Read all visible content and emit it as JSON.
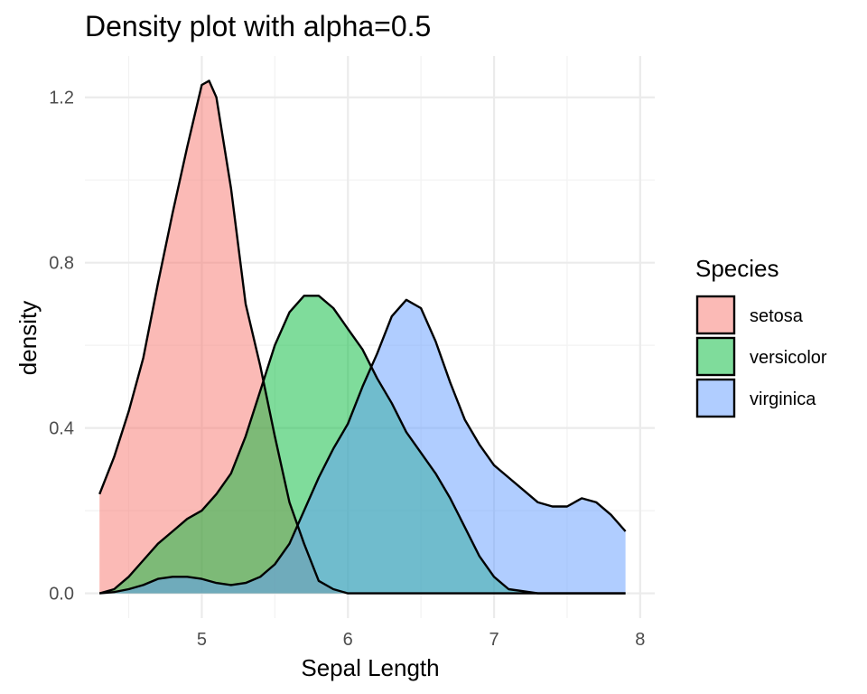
{
  "chart_data": {
    "type": "area",
    "title": "Density plot with alpha=0.5",
    "xlabel": "Sepal Length",
    "ylabel": "density",
    "xlim": [
      4.2,
      8.1
    ],
    "ylim": [
      -0.06,
      1.3
    ],
    "x_ticks": [
      5,
      6,
      7,
      8
    ],
    "x_minor_ticks": [
      4.5,
      5.5,
      6.5,
      7.5
    ],
    "y_ticks": [
      0.0,
      0.4,
      0.8,
      1.2
    ],
    "y_tick_labels": [
      "0.0",
      "0.4",
      "0.8",
      "1.2"
    ],
    "y_minor_ticks": [
      0.2,
      0.6,
      1.0
    ],
    "grid": true,
    "fill_alpha": 0.5,
    "legend": {
      "title": "Species",
      "position": "right"
    },
    "series": [
      {
        "name": "setosa",
        "color": "#F8766D",
        "points": [
          [
            4.3,
            0.24
          ],
          [
            4.4,
            0.33
          ],
          [
            4.5,
            0.44
          ],
          [
            4.6,
            0.57
          ],
          [
            4.7,
            0.75
          ],
          [
            4.8,
            0.92
          ],
          [
            4.9,
            1.08
          ],
          [
            5.0,
            1.23
          ],
          [
            5.05,
            1.24
          ],
          [
            5.1,
            1.2
          ],
          [
            5.2,
            0.98
          ],
          [
            5.3,
            0.7
          ],
          [
            5.4,
            0.55
          ],
          [
            5.5,
            0.38
          ],
          [
            5.6,
            0.22
          ],
          [
            5.7,
            0.12
          ],
          [
            5.8,
            0.03
          ],
          [
            5.9,
            0.01
          ],
          [
            6.0,
            0.0
          ],
          [
            6.2,
            0.0
          ],
          [
            7.9,
            0.0
          ]
        ]
      },
      {
        "name": "versicolor",
        "color": "#00BA38",
        "points": [
          [
            4.3,
            0.0
          ],
          [
            4.4,
            0.01
          ],
          [
            4.5,
            0.04
          ],
          [
            4.6,
            0.08
          ],
          [
            4.7,
            0.12
          ],
          [
            4.8,
            0.15
          ],
          [
            4.9,
            0.18
          ],
          [
            5.0,
            0.2
          ],
          [
            5.1,
            0.24
          ],
          [
            5.2,
            0.29
          ],
          [
            5.3,
            0.38
          ],
          [
            5.4,
            0.49
          ],
          [
            5.5,
            0.6
          ],
          [
            5.6,
            0.68
          ],
          [
            5.7,
            0.72
          ],
          [
            5.8,
            0.72
          ],
          [
            5.9,
            0.69
          ],
          [
            6.0,
            0.64
          ],
          [
            6.1,
            0.59
          ],
          [
            6.2,
            0.52
          ],
          [
            6.3,
            0.46
          ],
          [
            6.4,
            0.39
          ],
          [
            6.5,
            0.34
          ],
          [
            6.6,
            0.29
          ],
          [
            6.7,
            0.23
          ],
          [
            6.8,
            0.16
          ],
          [
            6.9,
            0.09
          ],
          [
            7.0,
            0.04
          ],
          [
            7.1,
            0.01
          ],
          [
            7.3,
            0.0
          ],
          [
            7.9,
            0.0
          ]
        ]
      },
      {
        "name": "virginica",
        "color": "#619CFF",
        "points": [
          [
            4.3,
            0.0
          ],
          [
            4.4,
            0.003
          ],
          [
            4.5,
            0.01
          ],
          [
            4.6,
            0.02
          ],
          [
            4.7,
            0.035
          ],
          [
            4.8,
            0.04
          ],
          [
            4.9,
            0.04
          ],
          [
            5.0,
            0.035
          ],
          [
            5.1,
            0.025
          ],
          [
            5.2,
            0.02
          ],
          [
            5.3,
            0.025
          ],
          [
            5.4,
            0.04
          ],
          [
            5.5,
            0.07
          ],
          [
            5.6,
            0.12
          ],
          [
            5.7,
            0.2
          ],
          [
            5.8,
            0.28
          ],
          [
            5.9,
            0.35
          ],
          [
            6.0,
            0.41
          ],
          [
            6.1,
            0.5
          ],
          [
            6.2,
            0.58
          ],
          [
            6.3,
            0.67
          ],
          [
            6.4,
            0.71
          ],
          [
            6.5,
            0.69
          ],
          [
            6.6,
            0.61
          ],
          [
            6.7,
            0.51
          ],
          [
            6.8,
            0.42
          ],
          [
            6.9,
            0.36
          ],
          [
            7.0,
            0.31
          ],
          [
            7.1,
            0.28
          ],
          [
            7.2,
            0.25
          ],
          [
            7.3,
            0.22
          ],
          [
            7.4,
            0.21
          ],
          [
            7.5,
            0.21
          ],
          [
            7.6,
            0.23
          ],
          [
            7.7,
            0.22
          ],
          [
            7.8,
            0.19
          ],
          [
            7.9,
            0.15
          ]
        ]
      }
    ]
  }
}
